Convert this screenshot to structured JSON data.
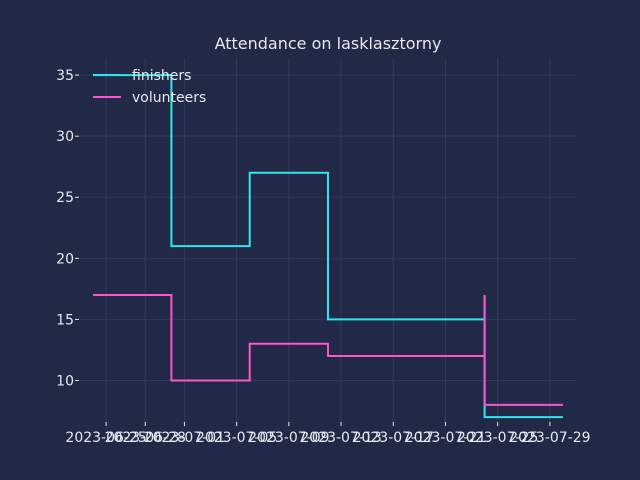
{
  "chart_data": {
    "type": "line",
    "step": "post",
    "title": "Attendance on lasklasztorny",
    "xlabel": "",
    "ylabel": "",
    "x": [
      "2023-06-24",
      "2023-06-30",
      "2023-07-06",
      "2023-07-12",
      "2023-07-18",
      "2023-07-24",
      "2023-07-24"
    ],
    "x_end": "2023-07-30",
    "series": [
      {
        "name": "finishers",
        "color": "#2ee6f0",
        "values": [
          35,
          21,
          27,
          15,
          15,
          17,
          7
        ]
      },
      {
        "name": "volunteers",
        "color": "#ff55cc",
        "values": [
          17,
          10,
          13,
          12,
          12,
          17,
          8
        ]
      }
    ],
    "xtick_labels": [
      "2023-06-25",
      "2023-06-28",
      "2023-07-01",
      "2023-07-05",
      "2023-07-09",
      "2023-07-13",
      "2023-07-17",
      "2023-07-21",
      "2023-07-25",
      "2023-07-29"
    ],
    "ytick_labels": [
      "10",
      "15",
      "20",
      "25",
      "30",
      "35"
    ],
    "ylim": [
      6.6,
      36.4
    ],
    "grid": true,
    "legend": "top-left",
    "background": "#212946",
    "grid_color": "#2f3b63"
  }
}
